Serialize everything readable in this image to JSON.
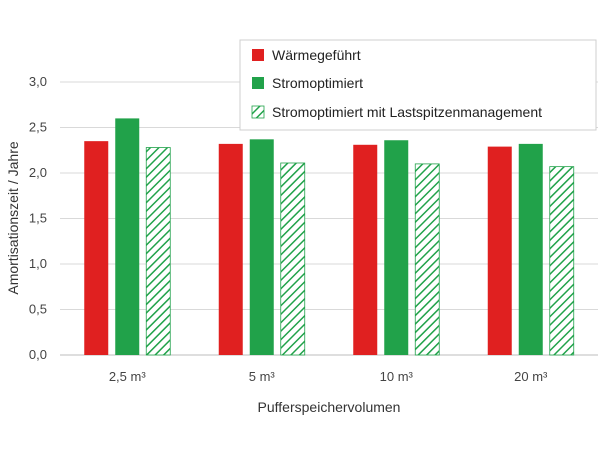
{
  "chart_data": {
    "type": "bar",
    "categories": [
      "2,5 m³",
      "5 m³",
      "10 m³",
      "20 m³"
    ],
    "series": [
      {
        "name": "Wärmegeführt",
        "values": [
          2.35,
          2.32,
          2.31,
          2.29
        ],
        "color": "#e02020",
        "pattern": "solid"
      },
      {
        "name": "Stromoptimiert",
        "values": [
          2.6,
          2.37,
          2.36,
          2.32
        ],
        "color": "#21a24a",
        "pattern": "solid"
      },
      {
        "name": "Stromoptimiert mit Lastspitzenmanagement",
        "values": [
          2.28,
          2.11,
          2.1,
          2.07
        ],
        "color": "#21a24a",
        "pattern": "hatched"
      }
    ],
    "title": "",
    "xlabel": "Pufferspeichervolumen",
    "ylabel": "Amortisationszeit / Jahre",
    "ylim": [
      0,
      3.0
    ],
    "yticks": [
      "0,0",
      "0,5",
      "1,0",
      "1,5",
      "2,0",
      "2,5",
      "3,0"
    ],
    "grid": "horizontal",
    "legend_position": "top-right"
  }
}
